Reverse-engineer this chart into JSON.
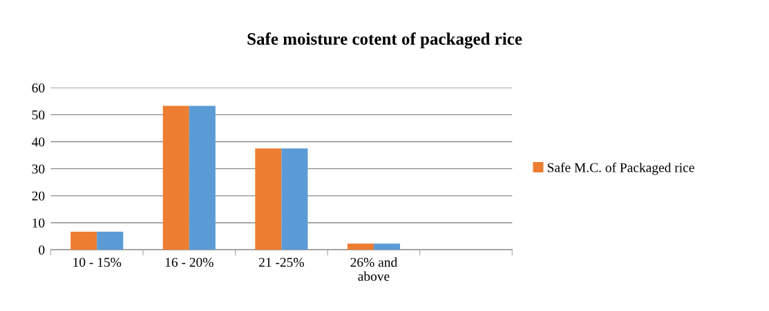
{
  "chart_data": {
    "type": "bar",
    "title": "Safe moisture cotent of packaged rice",
    "categories": [
      "10 - 15%",
      "16 - 20%",
      "21 -25%",
      "26% and\nabove",
      null
    ],
    "series": [
      {
        "name": "Safe M.C. of Packaged rice",
        "color": "#ed7d31",
        "values": [
          6.7,
          53.3,
          37.5,
          2.3,
          null
        ]
      },
      {
        "color": "#5b9bd5",
        "values": [
          6.7,
          53.3,
          37.5,
          2.3,
          null
        ]
      }
    ],
    "ylim": [
      0,
      60
    ],
    "yticks": [
      0,
      10,
      20,
      30,
      40,
      50,
      60
    ],
    "grid": "y",
    "legend": "right"
  }
}
